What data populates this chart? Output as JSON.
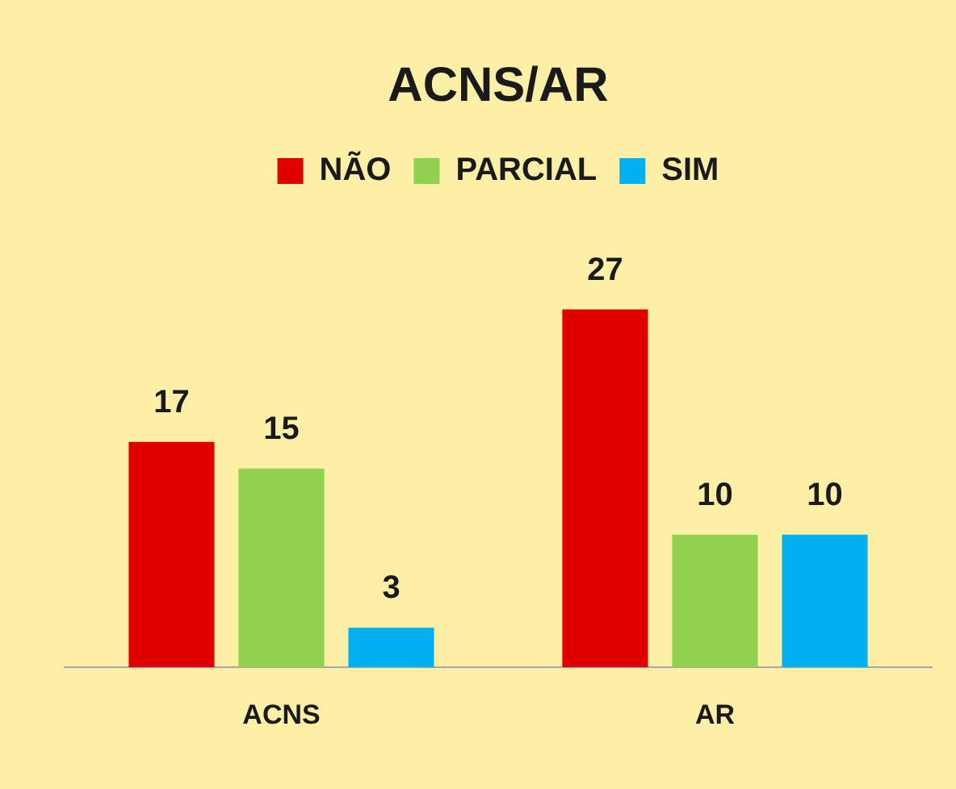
{
  "chart_data": {
    "type": "bar",
    "title": "ACNS/AR",
    "categories": [
      "ACNS",
      "AR"
    ],
    "series": [
      {
        "name": "NÃO",
        "color": "#e00000",
        "values": [
          17,
          27
        ]
      },
      {
        "name": "PARCIAL",
        "color": "#92d050",
        "values": [
          15,
          10
        ]
      },
      {
        "name": "SIM",
        "color": "#00b0f0",
        "values": [
          3,
          10
        ]
      }
    ],
    "data_labels": true,
    "legend": "top",
    "grid": false,
    "tick_labels": "x"
  }
}
